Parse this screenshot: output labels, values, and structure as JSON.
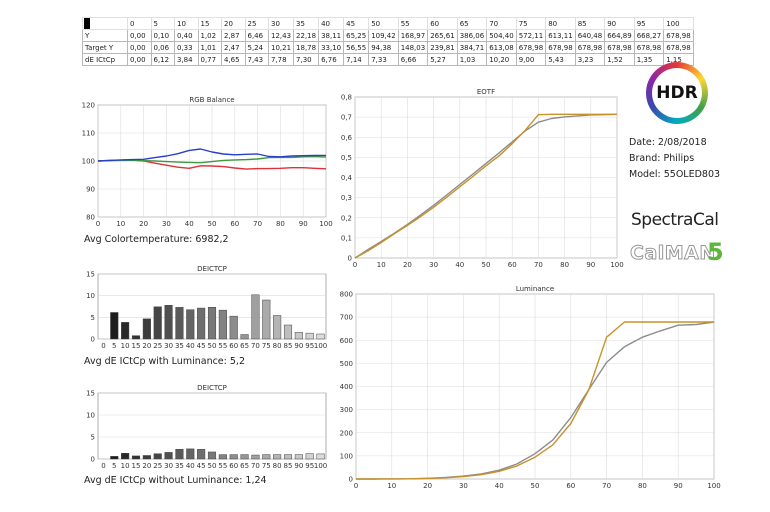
{
  "table": {
    "header": [
      "0",
      "5",
      "10",
      "15",
      "20",
      "25",
      "30",
      "35",
      "40",
      "45",
      "50",
      "55",
      "60",
      "65",
      "70",
      "75",
      "80",
      "85",
      "90",
      "95",
      "100"
    ],
    "rows": [
      {
        "label": "Y",
        "values": [
          "0,00",
          "0,10",
          "0,40",
          "1,02",
          "2,87",
          "6,46",
          "12,43",
          "22,18",
          "38,11",
          "65,25",
          "109,42",
          "168,97",
          "265,61",
          "386,06",
          "504,40",
          "572,11",
          "613,11",
          "640,48",
          "664,89",
          "668,27",
          "678,98"
        ]
      },
      {
        "label": "Target Y",
        "values": [
          "0,00",
          "0,06",
          "0,33",
          "1,01",
          "2,47",
          "5,24",
          "10,21",
          "18,78",
          "33,10",
          "56,55",
          "94,38",
          "148,03",
          "239,81",
          "384,71",
          "613,08",
          "678,98",
          "678,98",
          "678,98",
          "678,98",
          "678,98",
          "678,98"
        ]
      },
      {
        "label": "dE ICtCp",
        "values": [
          "0,00",
          "6,12",
          "3,84",
          "0,77",
          "4,65",
          "7,43",
          "7,78",
          "7,30",
          "6,76",
          "7,14",
          "7,33",
          "6,66",
          "5,27",
          "1,03",
          "10,20",
          "9,00",
          "5,43",
          "3,23",
          "1,52",
          "1,35",
          "1,15"
        ]
      }
    ]
  },
  "info": {
    "date": "Date: 2/08/2018",
    "brand": "Brand: Philips",
    "model": "Model: 55OLED803"
  },
  "logos": {
    "hdr": "HDR",
    "spectracal": "SpectraCal",
    "calman": "CalMAN",
    "calman_version": "5"
  },
  "captions": {
    "rgb": "Avg Colortemperature: 6982,2",
    "de_lum": "Avg dE ICtCp with Luminance: 5,2",
    "de_nolum": "Avg dE ICtCp without Luminance: 1,24"
  },
  "colors": {
    "red": "#e0303a",
    "green": "#3c9a3c",
    "blue": "#2a3fc8",
    "measured": "#8c8c8c",
    "target": "#c8922a",
    "grid": "#dcdcdc"
  },
  "chart_data": [
    {
      "type": "line",
      "title": "RGB Balance",
      "x": [
        0,
        5,
        10,
        15,
        20,
        25,
        30,
        35,
        40,
        45,
        50,
        55,
        60,
        65,
        70,
        75,
        80,
        85,
        90,
        95,
        100
      ],
      "xlim": [
        0,
        100
      ],
      "ylim": [
        80,
        120
      ],
      "xticks": [
        0,
        10,
        20,
        30,
        40,
        50,
        60,
        70,
        80,
        90,
        100
      ],
      "yticks": [
        80,
        90,
        100,
        110,
        120
      ],
      "series": [
        {
          "name": "Red",
          "color": "red",
          "values": [
            100,
            100.2,
            100.3,
            100.4,
            100,
            99.2,
            98.5,
            97.8,
            97.4,
            98.3,
            98.2,
            98,
            97.5,
            97.1,
            97.3,
            97.3,
            97.4,
            97.6,
            97.6,
            97.4,
            97.2
          ]
        },
        {
          "name": "Green",
          "color": "green",
          "values": [
            100,
            100.1,
            100.2,
            100.2,
            100.1,
            100,
            99.8,
            99.6,
            99.5,
            99.4,
            99.8,
            100.2,
            100.4,
            100.5,
            100.7,
            101.2,
            101.3,
            101.3,
            101.5,
            101.6,
            101.4
          ]
        },
        {
          "name": "Blue",
          "color": "blue",
          "values": [
            100,
            100.2,
            100.4,
            100.5,
            100.6,
            101.2,
            101.8,
            102.6,
            103.8,
            104.3,
            103.2,
            102.5,
            102.2,
            102.4,
            102.5,
            101.6,
            101.5,
            101.8,
            101.9,
            102,
            102
          ]
        }
      ]
    },
    {
      "type": "line",
      "title": "EOTF",
      "x": [
        0,
        5,
        10,
        15,
        20,
        25,
        30,
        35,
        40,
        45,
        50,
        55,
        60,
        65,
        70,
        75,
        80,
        85,
        90,
        95,
        100
      ],
      "xlim": [
        0,
        100
      ],
      "ylim": [
        0,
        0.8
      ],
      "xticks": [
        0,
        10,
        20,
        30,
        40,
        50,
        60,
        70,
        80,
        90,
        100
      ],
      "yticks": [
        0,
        0.1,
        0.2,
        0.3,
        0.4,
        0.5,
        0.6,
        0.7,
        0.8
      ],
      "ytick_labels": [
        "0",
        "0,1",
        "0,2",
        "0,3",
        "0,4",
        "0,5",
        "0,6",
        "0,7",
        "0,8"
      ],
      "series": [
        {
          "name": "Measured",
          "color": "measured",
          "values": [
            0,
            0.042,
            0.082,
            0.123,
            0.167,
            0.213,
            0.262,
            0.313,
            0.365,
            0.417,
            0.47,
            0.522,
            0.577,
            0.632,
            0.675,
            0.693,
            0.701,
            0.706,
            0.711,
            0.712,
            0.714
          ]
        },
        {
          "name": "Target",
          "color": "target",
          "values": [
            0,
            0.036,
            0.077,
            0.12,
            0.162,
            0.205,
            0.252,
            0.302,
            0.354,
            0.405,
            0.458,
            0.508,
            0.568,
            0.635,
            0.712,
            0.714,
            0.714,
            0.714,
            0.714,
            0.714,
            0.714
          ]
        }
      ]
    },
    {
      "type": "bar",
      "title": "DEICTCP",
      "categories": [
        "0",
        "5",
        "10",
        "15",
        "20",
        "25",
        "30",
        "35",
        "40",
        "45",
        "50",
        "55",
        "60",
        "65",
        "70",
        "75",
        "80",
        "85",
        "90",
        "95",
        "100"
      ],
      "values": [
        0,
        6.12,
        3.84,
        0.77,
        4.65,
        7.43,
        7.78,
        7.3,
        6.76,
        7.14,
        7.33,
        6.66,
        5.27,
        1.03,
        10.2,
        9,
        5.43,
        3.23,
        1.52,
        1.35,
        1.15
      ],
      "ylim": [
        0,
        15
      ],
      "yticks": [
        0,
        5,
        10,
        15
      ]
    },
    {
      "type": "bar",
      "title": "DEICTCP",
      "categories": [
        "0",
        "5",
        "10",
        "15",
        "20",
        "25",
        "30",
        "35",
        "40",
        "45",
        "50",
        "55",
        "60",
        "65",
        "70",
        "75",
        "80",
        "85",
        "90",
        "95",
        "100"
      ],
      "values": [
        0,
        0.6,
        1.3,
        0.7,
        0.8,
        1.2,
        1.5,
        2.2,
        2.3,
        2.2,
        1.6,
        1.0,
        1.0,
        1.0,
        0.9,
        1.0,
        1.0,
        1.0,
        1.0,
        1.2,
        1.15
      ],
      "ylim": [
        0,
        15
      ],
      "yticks": [
        0,
        5,
        10,
        15
      ]
    },
    {
      "type": "line",
      "title": "Luminance",
      "x": [
        0,
        5,
        10,
        15,
        20,
        25,
        30,
        35,
        40,
        45,
        50,
        55,
        60,
        65,
        70,
        75,
        80,
        85,
        90,
        95,
        100
      ],
      "xlim": [
        0,
        100
      ],
      "ylim": [
        0,
        800
      ],
      "xticks": [
        0,
        10,
        20,
        30,
        40,
        50,
        60,
        70,
        80,
        90,
        100
      ],
      "yticks": [
        0,
        100,
        200,
        300,
        400,
        500,
        600,
        700,
        800
      ],
      "series": [
        {
          "name": "Measured",
          "color": "measured",
          "values": [
            0,
            0.1,
            0.4,
            1.02,
            2.87,
            6.46,
            12.43,
            22.18,
            38.11,
            65.25,
            109.42,
            168.97,
            265.61,
            386.06,
            504.4,
            572.11,
            613.11,
            640.48,
            664.89,
            668.27,
            678.98
          ]
        },
        {
          "name": "Target",
          "color": "target",
          "values": [
            0,
            0.06,
            0.33,
            1.01,
            2.47,
            5.24,
            10.21,
            18.78,
            33.1,
            56.55,
            94.38,
            148.03,
            239.81,
            384.71,
            613.08,
            678.98,
            678.98,
            678.98,
            678.98,
            678.98,
            678.98
          ]
        }
      ]
    }
  ]
}
